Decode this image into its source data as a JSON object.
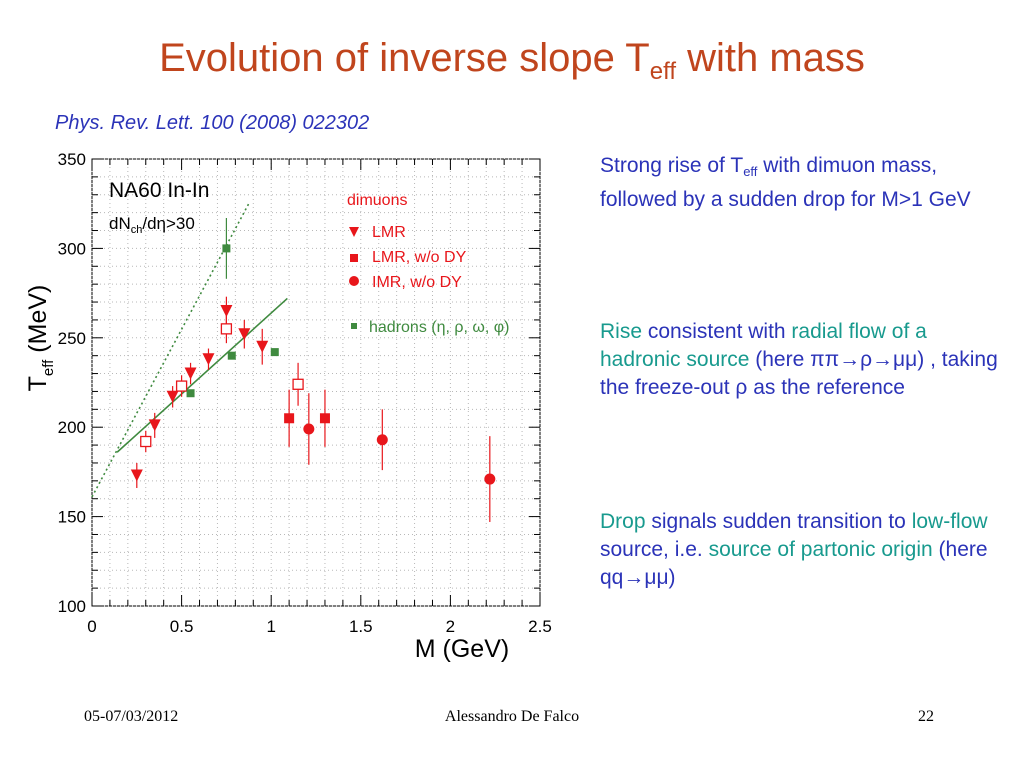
{
  "slide": {
    "title_main": "Evolution of inverse slope T",
    "title_sub": "eff",
    "title_tail": " with mass",
    "citation": "Phys. Rev. Lett. 100 (2008) 022302",
    "footer": {
      "date": "05-07/03/2012",
      "author": "Alessandro De Falco",
      "page": "22"
    }
  },
  "bullets": [
    {
      "parts": [
        {
          "t": "Strong rise of T"
        },
        {
          "t": "eff",
          "sub": true
        },
        {
          "t": " with dimuon mass, followed by a sudden drop for M>1 GeV"
        }
      ]
    },
    {
      "parts": [
        {
          "t": "Rise",
          "teal": true
        },
        {
          "t": " consistent with "
        },
        {
          "t": "radial flow of a hadronic source",
          "teal": true
        },
        {
          "t": " (here ππ→ρ→μμ) , taking the freeze-out  ρ as the reference"
        }
      ]
    },
    {
      "parts": [
        {
          "t": "Drop",
          "teal": true
        },
        {
          "t": " signals sudden transition to "
        },
        {
          "t": "low-flow",
          "teal": true
        },
        {
          "t": " source, i.e. "
        },
        {
          "t": "source of  partonic origin",
          "teal": true
        },
        {
          "t": " (here qq→μμ)"
        }
      ]
    }
  ],
  "colors": {
    "title": "#c0451d",
    "text": "#2b33b8",
    "teal": "#189a8e",
    "dimuon": "#e8161b",
    "hadron": "#3f8a3f"
  },
  "chart_data": {
    "type": "scatter",
    "xlabel": "M (GeV)",
    "ylabel_main": "T",
    "ylabel_sub": "eff",
    "ylabel_tail": " (MeV)",
    "xlim": [
      0,
      2.5
    ],
    "ylim": [
      100,
      350
    ],
    "x_ticks": [
      0,
      0.5,
      1,
      1.5,
      2,
      2.5
    ],
    "x_tick_labels": [
      "0",
      "0.5",
      "1",
      "1.5",
      "2",
      "2.5"
    ],
    "y_ticks": [
      100,
      150,
      200,
      250,
      300,
      350
    ],
    "y_tick_labels": [
      "100",
      "150",
      "200",
      "250",
      "300",
      "350"
    ],
    "annotations": {
      "experiment": "NA60 In-In",
      "cut_main": "dN",
      "cut_sub": "ch",
      "cut_tail": "/dη>30"
    },
    "legend": {
      "dimuon_header": "dimuons",
      "entries": [
        "LMR",
        "LMR, w/o DY",
        "IMR,  w/o DY"
      ],
      "hadron_entry": "hadrons (η, ρ, ω, φ)"
    },
    "series": [
      {
        "name": "LMR",
        "marker": "triangle-down",
        "color": "#e8161b",
        "points": [
          [
            0.25,
            173,
            7
          ],
          [
            0.35,
            201,
            7
          ],
          [
            0.45,
            217,
            6
          ],
          [
            0.55,
            230,
            6
          ],
          [
            0.65,
            238,
            6
          ],
          [
            0.75,
            265,
            8
          ],
          [
            0.85,
            252,
            8
          ],
          [
            0.95,
            245,
            10
          ]
        ]
      },
      {
        "name": "LMR, w/o DY",
        "marker": "square-open",
        "color": "#e8161b",
        "points": [
          [
            0.3,
            192,
            6
          ],
          [
            0.5,
            223,
            6
          ],
          [
            0.75,
            255,
            8
          ],
          [
            1.15,
            224,
            12
          ]
        ]
      },
      {
        "name": "LMR, w/o DY",
        "marker": "square",
        "color": "#e8161b",
        "points": [
          [
            1.1,
            205,
            16
          ],
          [
            1.3,
            205,
            16
          ]
        ]
      },
      {
        "name": "IMR,  w/o DY",
        "marker": "circle",
        "color": "#e8161b",
        "points": [
          [
            1.21,
            199,
            20
          ],
          [
            1.62,
            193,
            17
          ],
          [
            2.22,
            171,
            24
          ]
        ]
      },
      {
        "name": "hadrons (η, ρ, ω, φ)",
        "marker": "square-small",
        "color": "#3f8a3f",
        "points": [
          [
            0.55,
            219,
            0
          ],
          [
            0.75,
            300,
            17
          ],
          [
            0.78,
            240,
            0
          ],
          [
            1.02,
            242,
            0
          ]
        ]
      }
    ],
    "fit_lines": [
      {
        "style": "solid",
        "color": "#3f8a3f",
        "from": [
          0.14,
          186
        ],
        "to": [
          1.09,
          272
        ]
      },
      {
        "style": "dotted",
        "color": "#3f8a3f",
        "from": [
          0,
          161
        ],
        "to": [
          0.88,
          326
        ]
      }
    ]
  }
}
